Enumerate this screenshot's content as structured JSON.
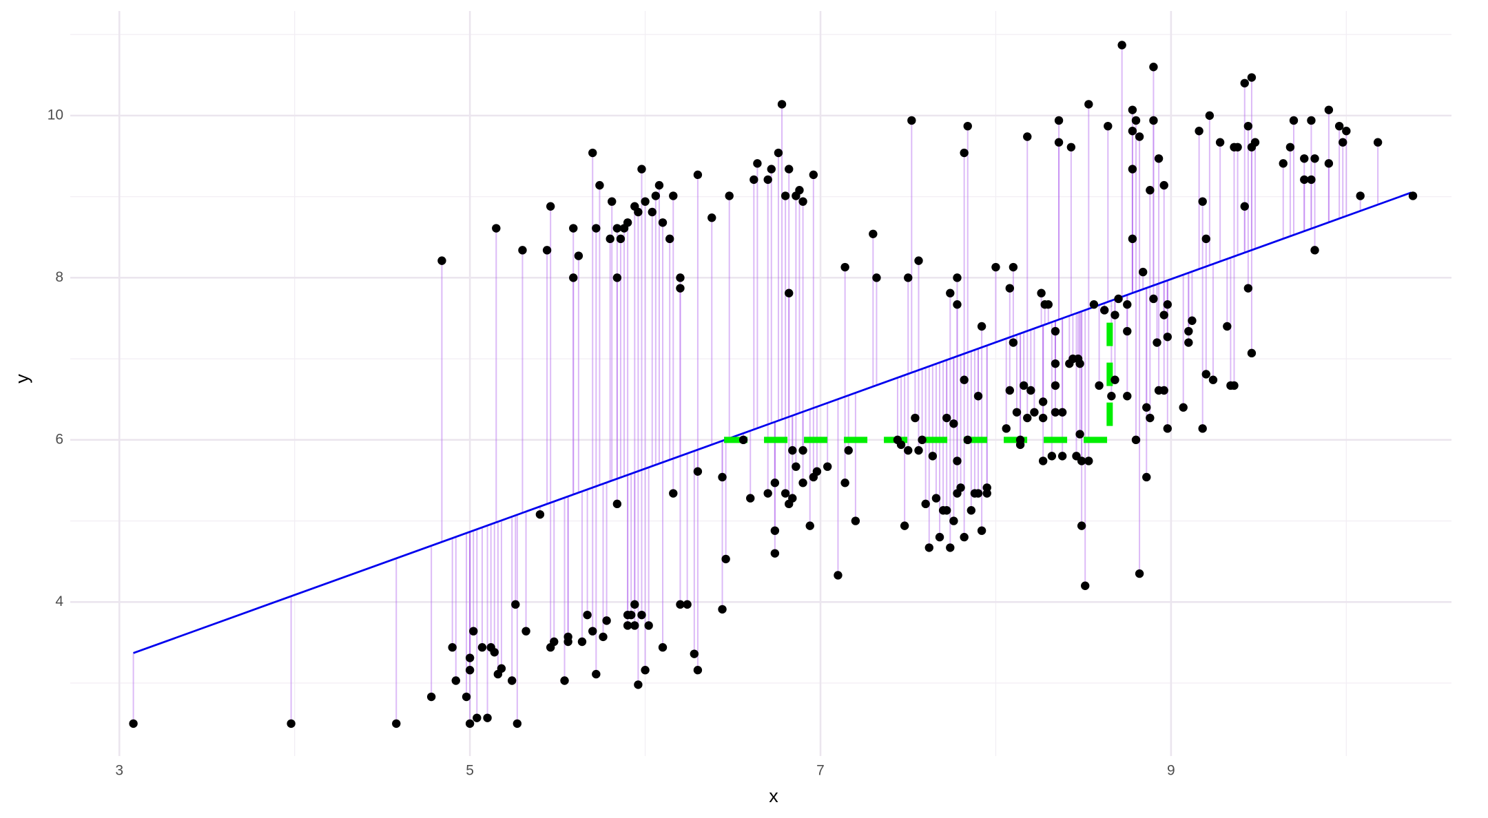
{
  "chart_data": {
    "type": "scatter",
    "x_label": "x",
    "y_label": "y",
    "xlim": [
      2.72,
      10.6
    ],
    "ylim": [
      2.1,
      11.29
    ],
    "xticks": [
      3,
      5,
      7,
      9
    ],
    "yticks": [
      4,
      6,
      8,
      10
    ],
    "xminor": [
      4,
      6,
      8,
      10
    ],
    "yminor": [
      3,
      5,
      7,
      9,
      11
    ],
    "grid": true,
    "point_color": "#000000",
    "residual_color": "#b266ee",
    "line": {
      "color": "#0000ee",
      "x": [
        3.08,
        10.37
      ],
      "y": [
        3.37,
        9.05
      ]
    },
    "annotation_path": {
      "color": "#00ee00",
      "x": [
        6.45,
        8.65,
        8.65
      ],
      "y": [
        6,
        6,
        7.65
      ]
    },
    "points": {
      "x": [
        3.08,
        3.98,
        4.58,
        4.78,
        4.84,
        4.9,
        4.92,
        4.98,
        5.0,
        5.0,
        5.0,
        5.02,
        5.04,
        5.07,
        5.1,
        5.12,
        5.14,
        5.15,
        5.16,
        5.18,
        5.24,
        5.26,
        5.27,
        5.3,
        5.32,
        5.4,
        5.44,
        5.46,
        5.46,
        5.48,
        5.54,
        5.56,
        5.56,
        5.59,
        5.59,
        5.62,
        5.64,
        5.67,
        5.7,
        5.7,
        5.72,
        5.72,
        5.74,
        5.76,
        5.78,
        5.8,
        5.81,
        5.84,
        5.84,
        5.84,
        5.86,
        5.88,
        5.9,
        5.9,
        5.9,
        5.92,
        5.94,
        5.94,
        5.94,
        5.96,
        5.96,
        5.98,
        5.98,
        6.0,
        6.0,
        6.02,
        6.04,
        6.06,
        6.08,
        6.1,
        6.1,
        6.14,
        6.16,
        6.16,
        6.2,
        6.2,
        6.2,
        6.24,
        6.28,
        6.3,
        6.3,
        6.3,
        6.38,
        6.44,
        6.44,
        6.46,
        6.48,
        6.56,
        6.6,
        6.62,
        6.64,
        6.7,
        6.7,
        6.72,
        6.74,
        6.74,
        6.74,
        6.76,
        6.78,
        6.8,
        6.8,
        6.82,
        6.82,
        6.82,
        6.84,
        6.84,
        6.86,
        6.86,
        6.88,
        6.9,
        6.9,
        6.9,
        6.94,
        6.96,
        6.96,
        6.98,
        7.04,
        7.1,
        7.14,
        7.14,
        7.16,
        7.2,
        7.3,
        7.32,
        7.44,
        7.46,
        7.48,
        7.5,
        7.5,
        7.52,
        7.54,
        7.56,
        7.56,
        7.58,
        7.6,
        7.62,
        7.64,
        7.66,
        7.68,
        7.7,
        7.72,
        7.72,
        7.74,
        7.74,
        7.76,
        7.76,
        7.78,
        7.78,
        7.78,
        7.78,
        7.8,
        7.82,
        7.82,
        7.82,
        7.84,
        7.84,
        7.86,
        7.88,
        7.9,
        7.9,
        7.92,
        7.92,
        7.95,
        7.95,
        8.0,
        8.06,
        8.08,
        8.08,
        8.1,
        8.1,
        8.12,
        8.14,
        8.14,
        8.16,
        8.18,
        8.18,
        8.2,
        8.22,
        8.26,
        8.27,
        8.27,
        8.27,
        8.28,
        8.3,
        8.32,
        8.34,
        8.34,
        8.34,
        8.34,
        8.36,
        8.36,
        8.38,
        8.38,
        8.42,
        8.43,
        8.44,
        8.46,
        8.47,
        8.48,
        8.48,
        8.49,
        8.49,
        8.51,
        8.53,
        8.53,
        8.56,
        8.59,
        8.62,
        8.64,
        8.66,
        8.68,
        8.68,
        8.7,
        8.72,
        8.75,
        8.75,
        8.75,
        8.78,
        8.78,
        8.78,
        8.78,
        8.8,
        8.8,
        8.82,
        8.82,
        8.84,
        8.86,
        8.86,
        8.88,
        8.88,
        8.9,
        8.9,
        8.9,
        8.92,
        8.93,
        8.93,
        8.96,
        8.96,
        8.96,
        8.98,
        8.98,
        8.98,
        9.07,
        9.1,
        9.1,
        9.12,
        9.16,
        9.18,
        9.18,
        9.2,
        9.2,
        9.22,
        9.24,
        9.28,
        9.32,
        9.34,
        9.36,
        9.36,
        9.38,
        9.42,
        9.42,
        9.44,
        9.44,
        9.46,
        9.46,
        9.46,
        9.48,
        9.64,
        9.68,
        9.7,
        9.76,
        9.76,
        9.8,
        9.8,
        9.82,
        9.82,
        9.9,
        9.9,
        9.96,
        9.98,
        10.0,
        10.08,
        10.18,
        10.38
      ],
      "y": [
        2.5,
        2.5,
        2.5,
        2.83,
        8.21,
        3.44,
        3.03,
        2.83,
        3.31,
        3.16,
        2.5,
        3.64,
        2.57,
        3.44,
        2.57,
        3.44,
        3.38,
        8.61,
        3.11,
        3.18,
        3.03,
        3.97,
        2.5,
        8.34,
        3.64,
        5.08,
        8.34,
        3.44,
        8.88,
        3.51,
        3.03,
        3.57,
        3.51,
        8.61,
        8.0,
        8.27,
        3.51,
        3.84,
        9.54,
        3.64,
        8.61,
        3.11,
        9.14,
        3.57,
        3.77,
        8.48,
        8.94,
        8.61,
        8.0,
        5.21,
        8.48,
        8.61,
        8.68,
        3.84,
        3.71,
        3.84,
        8.88,
        3.97,
        3.71,
        2.98,
        8.81,
        9.34,
        3.84,
        8.94,
        3.16,
        3.71,
        8.81,
        9.01,
        9.14,
        3.44,
        8.68,
        8.48,
        9.01,
        5.34,
        8.0,
        7.87,
        3.97,
        3.97,
        3.36,
        9.27,
        5.61,
        3.16,
        8.74,
        3.91,
        5.54,
        4.53,
        9.01,
        6.0,
        5.28,
        9.21,
        9.41,
        9.21,
        5.34,
        9.34,
        5.47,
        4.88,
        4.6,
        9.54,
        10.14,
        5.34,
        9.01,
        7.81,
        9.34,
        5.21,
        5.28,
        5.87,
        5.67,
        9.01,
        9.08,
        8.94,
        5.87,
        5.47,
        4.94,
        9.27,
        5.54,
        5.61,
        5.67,
        4.33,
        8.13,
        5.47,
        5.87,
        5.0,
        8.54,
        8.0,
        6.0,
        5.94,
        4.94,
        5.87,
        8.0,
        9.94,
        6.27,
        8.21,
        5.87,
        6.0,
        5.21,
        4.67,
        5.8,
        5.28,
        4.8,
        5.13,
        6.27,
        5.13,
        7.81,
        4.67,
        5.0,
        6.2,
        5.34,
        5.74,
        8.0,
        7.67,
        5.41,
        6.74,
        4.8,
        9.54,
        9.87,
        6.0,
        5.13,
        5.34,
        6.54,
        5.34,
        7.4,
        4.88,
        5.34,
        5.41,
        8.13,
        6.14,
        6.61,
        7.87,
        8.13,
        7.2,
        6.34,
        6.0,
        5.94,
        6.67,
        9.74,
        6.27,
        6.61,
        6.34,
        7.81,
        6.47,
        6.27,
        5.74,
        7.67,
        7.67,
        5.8,
        7.34,
        6.34,
        6.67,
        6.94,
        9.94,
        9.67,
        6.34,
        5.8,
        6.94,
        9.61,
        7.0,
        5.8,
        7.0,
        6.07,
        6.94,
        4.94,
        5.74,
        4.2,
        5.74,
        10.14,
        7.67,
        6.67,
        7.6,
        9.87,
        6.54,
        7.54,
        6.74,
        7.74,
        10.87,
        7.34,
        7.67,
        6.54,
        10.07,
        9.34,
        9.81,
        8.48,
        9.94,
        6.0,
        4.35,
        9.74,
        8.07,
        5.54,
        6.4,
        9.08,
        6.27,
        9.94,
        7.74,
        10.6,
        7.2,
        9.47,
        6.61,
        7.54,
        6.61,
        9.14,
        7.67,
        7.27,
        6.14,
        6.4,
        7.34,
        7.2,
        7.47,
        9.81,
        8.94,
        6.14,
        8.48,
        6.81,
        10.0,
        6.74,
        9.67,
        7.4,
        6.67,
        6.67,
        9.61,
        9.61,
        10.4,
        8.88,
        9.87,
        7.87,
        10.47,
        7.07,
        9.61,
        9.67,
        9.41,
        9.61,
        9.94,
        9.47,
        9.21,
        9.94,
        9.21,
        9.47,
        8.34,
        10.07,
        9.41,
        9.87,
        9.67,
        9.81,
        9.01,
        9.67,
        9.01
      ]
    }
  }
}
